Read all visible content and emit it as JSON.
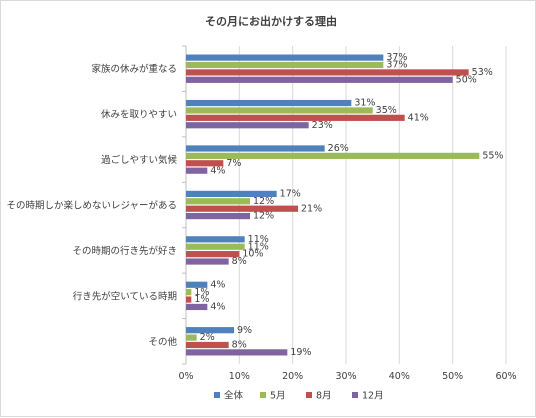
{
  "chart_data": {
    "type": "bar",
    "orientation": "horizontal",
    "title": "その月にお出かけする理由",
    "categories": [
      "家族の休みが重なる",
      "休みを取りやすい",
      "過ごしやすい気候",
      "その時期しか楽しめないレジャーがある",
      "その時期の行き先が好き",
      "行き先が空いている時期",
      "その他"
    ],
    "series": [
      {
        "name": "全体",
        "color": "#4f81bd",
        "values": [
          37,
          31,
          26,
          17,
          11,
          4,
          9
        ]
      },
      {
        "name": "5月",
        "color": "#9bbb59",
        "values": [
          37,
          35,
          55,
          12,
          11,
          1,
          2
        ]
      },
      {
        "name": "8月",
        "color": "#c0504d",
        "values": [
          53,
          41,
          7,
          21,
          10,
          1,
          8
        ]
      },
      {
        "name": "12月",
        "color": "#8064a2",
        "values": [
          50,
          23,
          4,
          12,
          8,
          4,
          19
        ]
      }
    ],
    "value_suffix": "%",
    "xlim": [
      0,
      60
    ],
    "xticks": [
      "0%",
      "10%",
      "20%",
      "30%",
      "40%",
      "50%",
      "60%"
    ],
    "grid": true,
    "legend_position": "bottom"
  }
}
